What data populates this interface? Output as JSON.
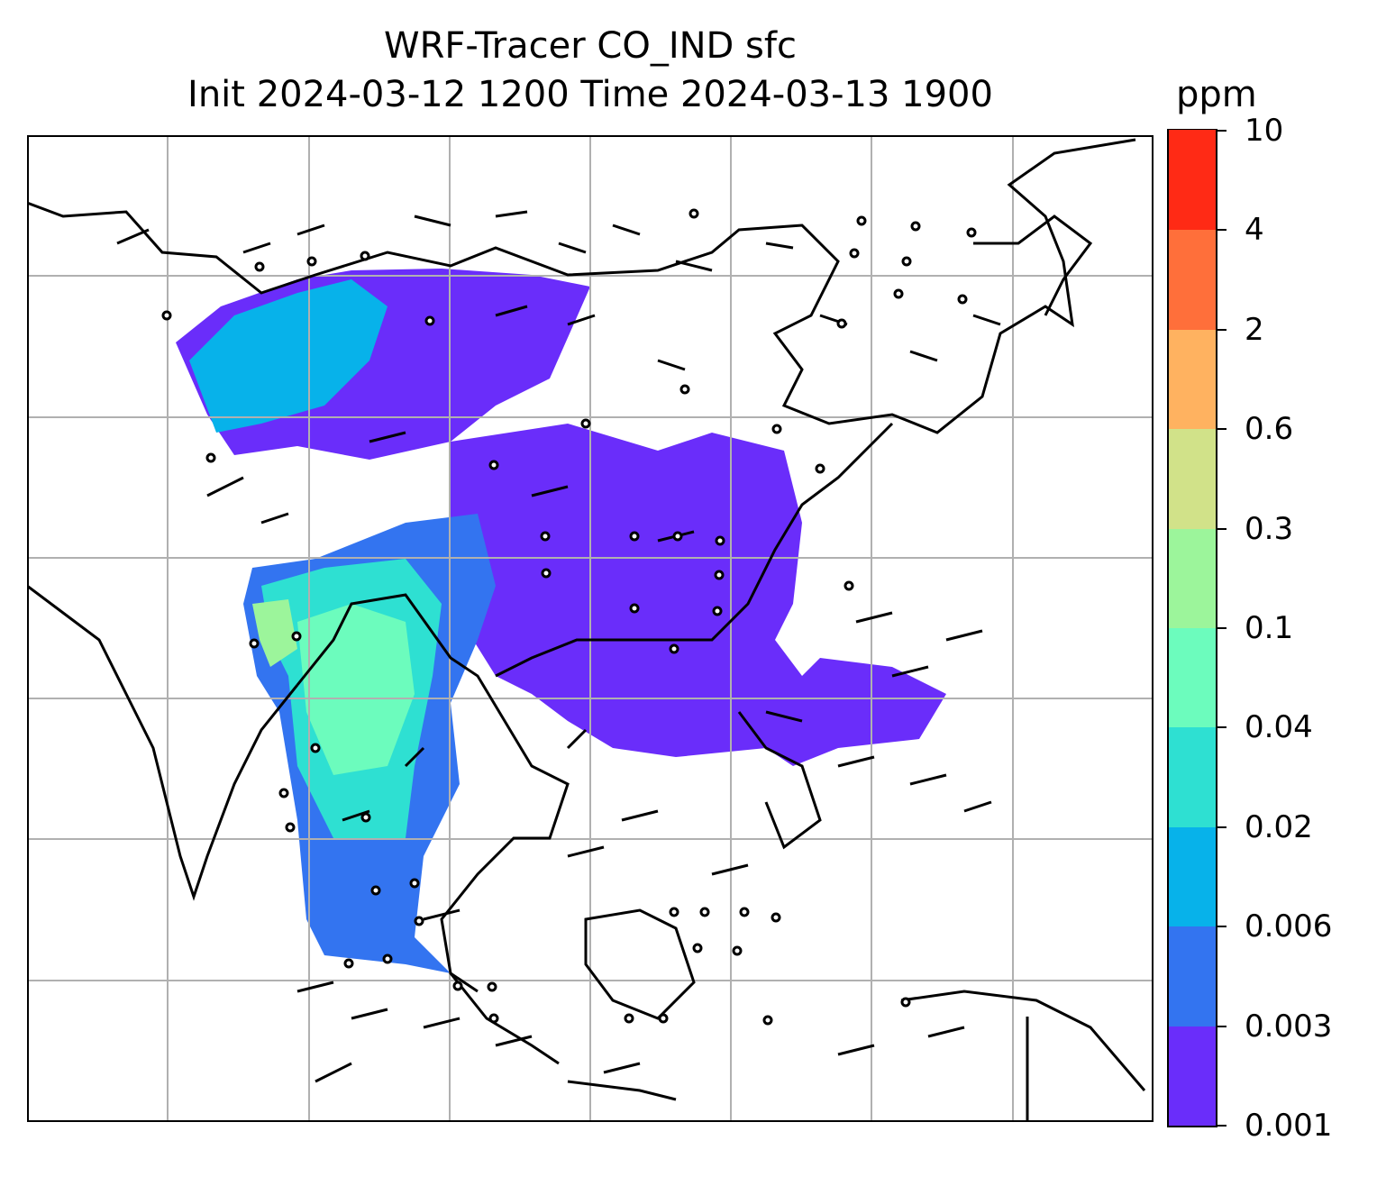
{
  "title": {
    "line1": "WRF-Tracer CO_IND sfc",
    "line2": "Init 2024-03-12 1200 Time 2024-03-13 1900"
  },
  "map": {
    "gridlines": true,
    "gridline_color": "#b0b0b0",
    "coastline_color": "#000000",
    "field": "CO_IND tracer concentration (filled contours)",
    "overlay": "wind barbs"
  },
  "colorbar": {
    "units": "ppm",
    "levels": [
      "0.001",
      "0.003",
      "0.006",
      "0.02",
      "0.04",
      "0.1",
      "0.3",
      "0.6",
      "2",
      "4",
      "10"
    ],
    "colors": [
      "#6a2dfa",
      "#3374f0",
      "#07b2ea",
      "#2ee0d2",
      "#6cfcbd",
      "#9cf59b",
      "#d1e289",
      "#ffb260",
      "#ff6f3a",
      "#ff2a15"
    ]
  }
}
